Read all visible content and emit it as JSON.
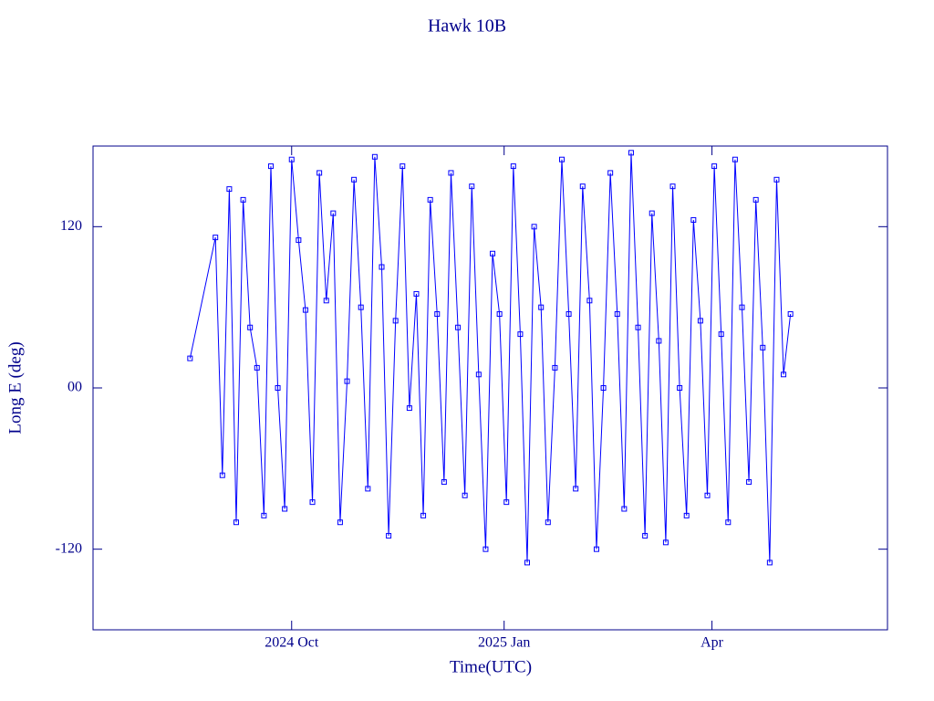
{
  "chart_data": {
    "type": "line",
    "title": "Hawk 10B",
    "x_label": "Time(UTC)",
    "y_label": "Long E (deg)",
    "x": [
      "2024-08-18",
      "2024-08-29",
      "2024-09-01",
      "2024-09-04",
      "2024-09-07",
      "2024-09-10",
      "2024-09-13",
      "2024-09-16",
      "2024-09-19",
      "2024-09-22",
      "2024-09-25",
      "2024-09-28",
      "2024-10-01",
      "2024-10-04",
      "2024-10-07",
      "2024-10-10",
      "2024-10-13",
      "2024-10-16",
      "2024-10-19",
      "2024-10-22",
      "2024-10-25",
      "2024-10-28",
      "2024-10-31",
      "2024-11-03",
      "2024-11-06",
      "2024-11-09",
      "2024-11-12",
      "2024-11-15",
      "2024-11-18",
      "2024-11-21",
      "2024-11-24",
      "2024-11-27",
      "2024-11-30",
      "2024-12-03",
      "2024-12-06",
      "2024-12-09",
      "2024-12-12",
      "2024-12-15",
      "2024-12-18",
      "2024-12-21",
      "2024-12-24",
      "2024-12-27",
      "2024-12-30",
      "2025-01-02",
      "2025-01-05",
      "2025-01-08",
      "2025-01-11",
      "2025-01-14",
      "2025-01-17",
      "2025-01-20",
      "2025-01-23",
      "2025-01-26",
      "2025-01-29",
      "2025-02-01",
      "2025-02-04",
      "2025-02-07",
      "2025-02-10",
      "2025-02-13",
      "2025-02-16",
      "2025-02-19",
      "2025-02-22",
      "2025-02-25",
      "2025-02-28",
      "2025-03-03",
      "2025-03-06",
      "2025-03-09",
      "2025-03-12",
      "2025-03-15",
      "2025-03-18",
      "2025-03-21",
      "2025-03-24",
      "2025-03-27",
      "2025-03-30",
      "2025-04-02",
      "2025-04-05",
      "2025-04-08",
      "2025-04-11",
      "2025-04-14",
      "2025-04-17",
      "2025-04-20",
      "2025-04-23",
      "2025-04-26",
      "2025-04-29",
      "2025-05-02",
      "2025-05-05"
    ],
    "series": [
      {
        "color": "#0000ff",
        "values": [
          22,
          112,
          -65,
          148,
          -100,
          140,
          45,
          15,
          -95,
          165,
          0,
          -90,
          170,
          110,
          58,
          -85,
          160,
          65,
          130,
          -100,
          5,
          155,
          60,
          -75,
          172,
          90,
          -110,
          50,
          165,
          -15,
          70,
          -95,
          140,
          55,
          -70,
          160,
          45,
          -80,
          150,
          10,
          -120,
          100,
          55,
          -85,
          165,
          40,
          -130,
          120,
          60,
          -100,
          15,
          170,
          55,
          -75,
          150,
          65,
          -120,
          0,
          160,
          55,
          -90,
          175,
          45,
          -110,
          130,
          35,
          -115,
          150,
          0,
          -95,
          125,
          50,
          -80,
          165,
          40,
          -100,
          170,
          60,
          -70,
          140,
          30,
          -130,
          155,
          10,
          55
        ]
      }
    ],
    "xlim": [
      "2024-07-07",
      "2025-06-16"
    ],
    "xticks": [
      {
        "value": "2024-10-01",
        "label": "2024 Oct"
      },
      {
        "value": "2025-01-01",
        "label": "2025 Jan"
      },
      {
        "value": "2025-04-01",
        "label": "Apr"
      }
    ],
    "ylim": [
      -180,
      180
    ],
    "yticks": [
      -120,
      {
        "value": 0,
        "label": "00"
      },
      120
    ],
    "axis_color": "#00008b"
  }
}
